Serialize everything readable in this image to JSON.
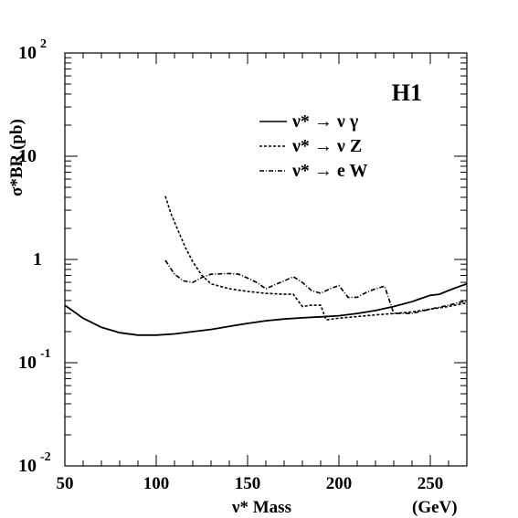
{
  "chart_data": {
    "type": "line",
    "scale": {
      "x": "linear",
      "y": "log"
    },
    "xlim": [
      50,
      270
    ],
    "ylim": [
      0.01,
      100
    ],
    "xticks": [
      {
        "value": 50,
        "label": "50"
      },
      {
        "value": 100,
        "label": "100"
      },
      {
        "value": 150,
        "label": "150"
      },
      {
        "value": 200,
        "label": "200"
      },
      {
        "value": 250,
        "label": "250"
      }
    ],
    "yticks": [
      {
        "value": 0.01,
        "base": "10",
        "exp": "-2"
      },
      {
        "value": 0.1,
        "base": "10",
        "exp": "-1"
      },
      {
        "value": 1,
        "base": "1",
        "exp": ""
      },
      {
        "value": 10,
        "base": "10",
        "exp": ""
      },
      {
        "value": 100,
        "base": "10",
        "exp": "2"
      }
    ],
    "ylabel": "σ*BR  (pb)",
    "xlabel": "ν* Mass",
    "xunit": "(GeV)",
    "annotation": "H1",
    "legend_position": "top-right",
    "series": [
      {
        "name": "ν* → ν γ",
        "style": "solid",
        "x": [
          50,
          60,
          70,
          80,
          90,
          100,
          110,
          120,
          130,
          140,
          150,
          160,
          170,
          180,
          190,
          200,
          210,
          220,
          230,
          240,
          245,
          250,
          255,
          260,
          265,
          270
        ],
        "y": [
          0.36,
          0.27,
          0.22,
          0.195,
          0.185,
          0.185,
          0.19,
          0.2,
          0.21,
          0.225,
          0.24,
          0.255,
          0.265,
          0.272,
          0.278,
          0.285,
          0.3,
          0.32,
          0.35,
          0.39,
          0.42,
          0.45,
          0.46,
          0.5,
          0.54,
          0.58
        ]
      },
      {
        "name": "ν* → ν Z",
        "style": "dashed",
        "x": [
          105,
          108,
          112,
          116,
          120,
          125,
          130,
          140,
          150,
          160,
          170,
          175,
          180,
          185,
          190,
          193,
          200,
          210,
          220,
          230,
          240,
          250,
          260,
          270
        ],
        "y": [
          4.1,
          2.8,
          1.9,
          1.3,
          0.95,
          0.7,
          0.58,
          0.52,
          0.49,
          0.47,
          0.46,
          0.46,
          0.35,
          0.36,
          0.36,
          0.26,
          0.27,
          0.28,
          0.29,
          0.3,
          0.31,
          0.33,
          0.35,
          0.38
        ]
      },
      {
        "name": "ν* → e W",
        "style": "dashdot",
        "x": [
          105,
          110,
          115,
          120,
          125,
          130,
          140,
          145,
          150,
          155,
          160,
          165,
          170,
          175,
          180,
          185,
          190,
          195,
          200,
          205,
          210,
          215,
          220,
          225,
          230,
          240,
          250,
          260,
          270
        ],
        "y": [
          0.98,
          0.72,
          0.62,
          0.6,
          0.67,
          0.72,
          0.73,
          0.72,
          0.66,
          0.6,
          0.52,
          0.57,
          0.62,
          0.68,
          0.6,
          0.5,
          0.47,
          0.52,
          0.56,
          0.43,
          0.43,
          0.48,
          0.52,
          0.55,
          0.3,
          0.3,
          0.33,
          0.36,
          0.4
        ]
      }
    ]
  }
}
